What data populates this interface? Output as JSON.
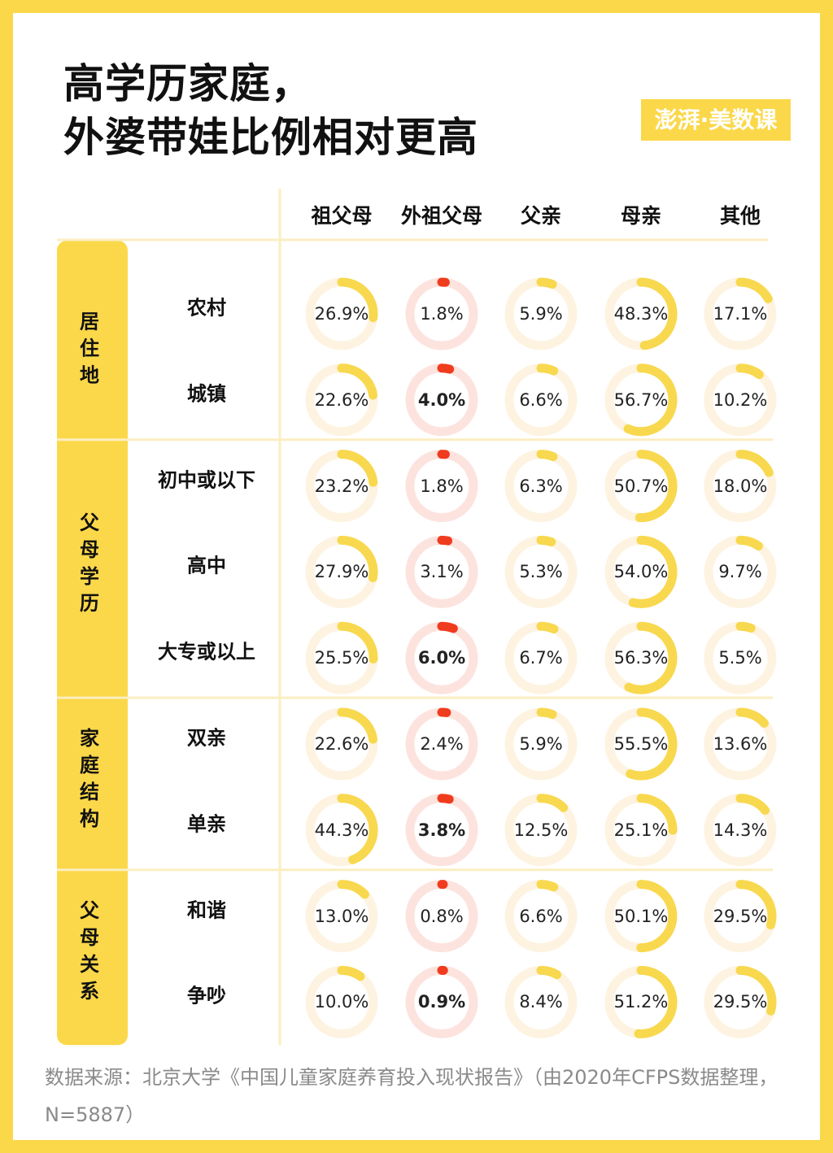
{
  "title": "高学历家庭，\n外婆带娃比例相对更高",
  "logo": "澎湃·美数课",
  "columns": [
    {
      "name": "祖父母",
      "color": "#f8d84e"
    },
    {
      "name": "外祖父母",
      "color": "#f03c1e"
    },
    {
      "name": "父亲",
      "color": "#f8d84e"
    },
    {
      "name": "母亲",
      "color": "#f8d84e"
    },
    {
      "name": "其他",
      "color": "#f8d84e"
    }
  ],
  "groups": [
    {
      "name": "居住地",
      "rows": [
        {
          "name": "农村",
          "values": [
            26.9,
            1.8,
            5.9,
            48.3,
            17.1
          ],
          "value_labels": [
            "26.9%",
            "1.8%",
            "5.9%",
            "48.3%",
            "17.1%"
          ]
        },
        {
          "name": "城镇",
          "values": [
            22.6,
            4.0,
            6.6,
            56.7,
            10.2
          ],
          "value_labels": [
            "22.6%",
            "4.0%",
            "6.6%",
            "56.7%",
            "10.2%"
          ]
        }
      ]
    },
    {
      "name": "父母学历",
      "rows": [
        {
          "name": "初中或以下",
          "values": [
            23.2,
            1.8,
            6.3,
            50.7,
            18.0
          ],
          "value_labels": [
            "23.2%",
            "1.8%",
            "6.3%",
            "50.7%",
            "18.0%"
          ]
        },
        {
          "name": "高中",
          "values": [
            27.9,
            3.1,
            5.3,
            54.0,
            9.7
          ],
          "value_labels": [
            "27.9%",
            "3.1%",
            "5.3%",
            "54.0%",
            "9.7%"
          ]
        },
        {
          "name": "大专或以上",
          "values": [
            25.5,
            6.0,
            6.7,
            56.3,
            5.5
          ],
          "value_labels": [
            "25.5%",
            "6.0%",
            "6.7%",
            "56.3%",
            "5.5%"
          ]
        }
      ]
    },
    {
      "name": "家庭结构",
      "rows": [
        {
          "name": "双亲",
          "values": [
            22.6,
            2.4,
            5.9,
            55.5,
            13.6
          ],
          "value_labels": [
            "22.6%",
            "2.4%",
            "5.9%",
            "55.5%",
            "13.6%"
          ]
        },
        {
          "name": "单亲",
          "values": [
            44.3,
            3.8,
            12.5,
            25.1,
            14.3
          ],
          "value_labels": [
            "44.3%",
            "3.8%",
            "12.5%",
            "25.1%",
            "14.3%"
          ]
        }
      ]
    },
    {
      "name": "父母关系",
      "rows": [
        {
          "name": "和谐",
          "values": [
            13.0,
            0.8,
            6.6,
            50.1,
            29.5
          ],
          "value_labels": [
            "13.0%",
            "0.8%",
            "6.6%",
            "50.1%",
            "29.5%"
          ]
        },
        {
          "name": "争吵",
          "values": [
            10.0,
            0.9,
            8.4,
            51.2,
            29.5
          ],
          "value_labels": [
            "10.0%",
            "0.9%",
            "8.4%",
            "51.2%",
            "29.5%"
          ]
        }
      ]
    }
  ],
  "source": "数据来源：北京大学《中国儿童家庭养育投入现状报告》（由2020年CFPS数据整理，N=5887）"
}
